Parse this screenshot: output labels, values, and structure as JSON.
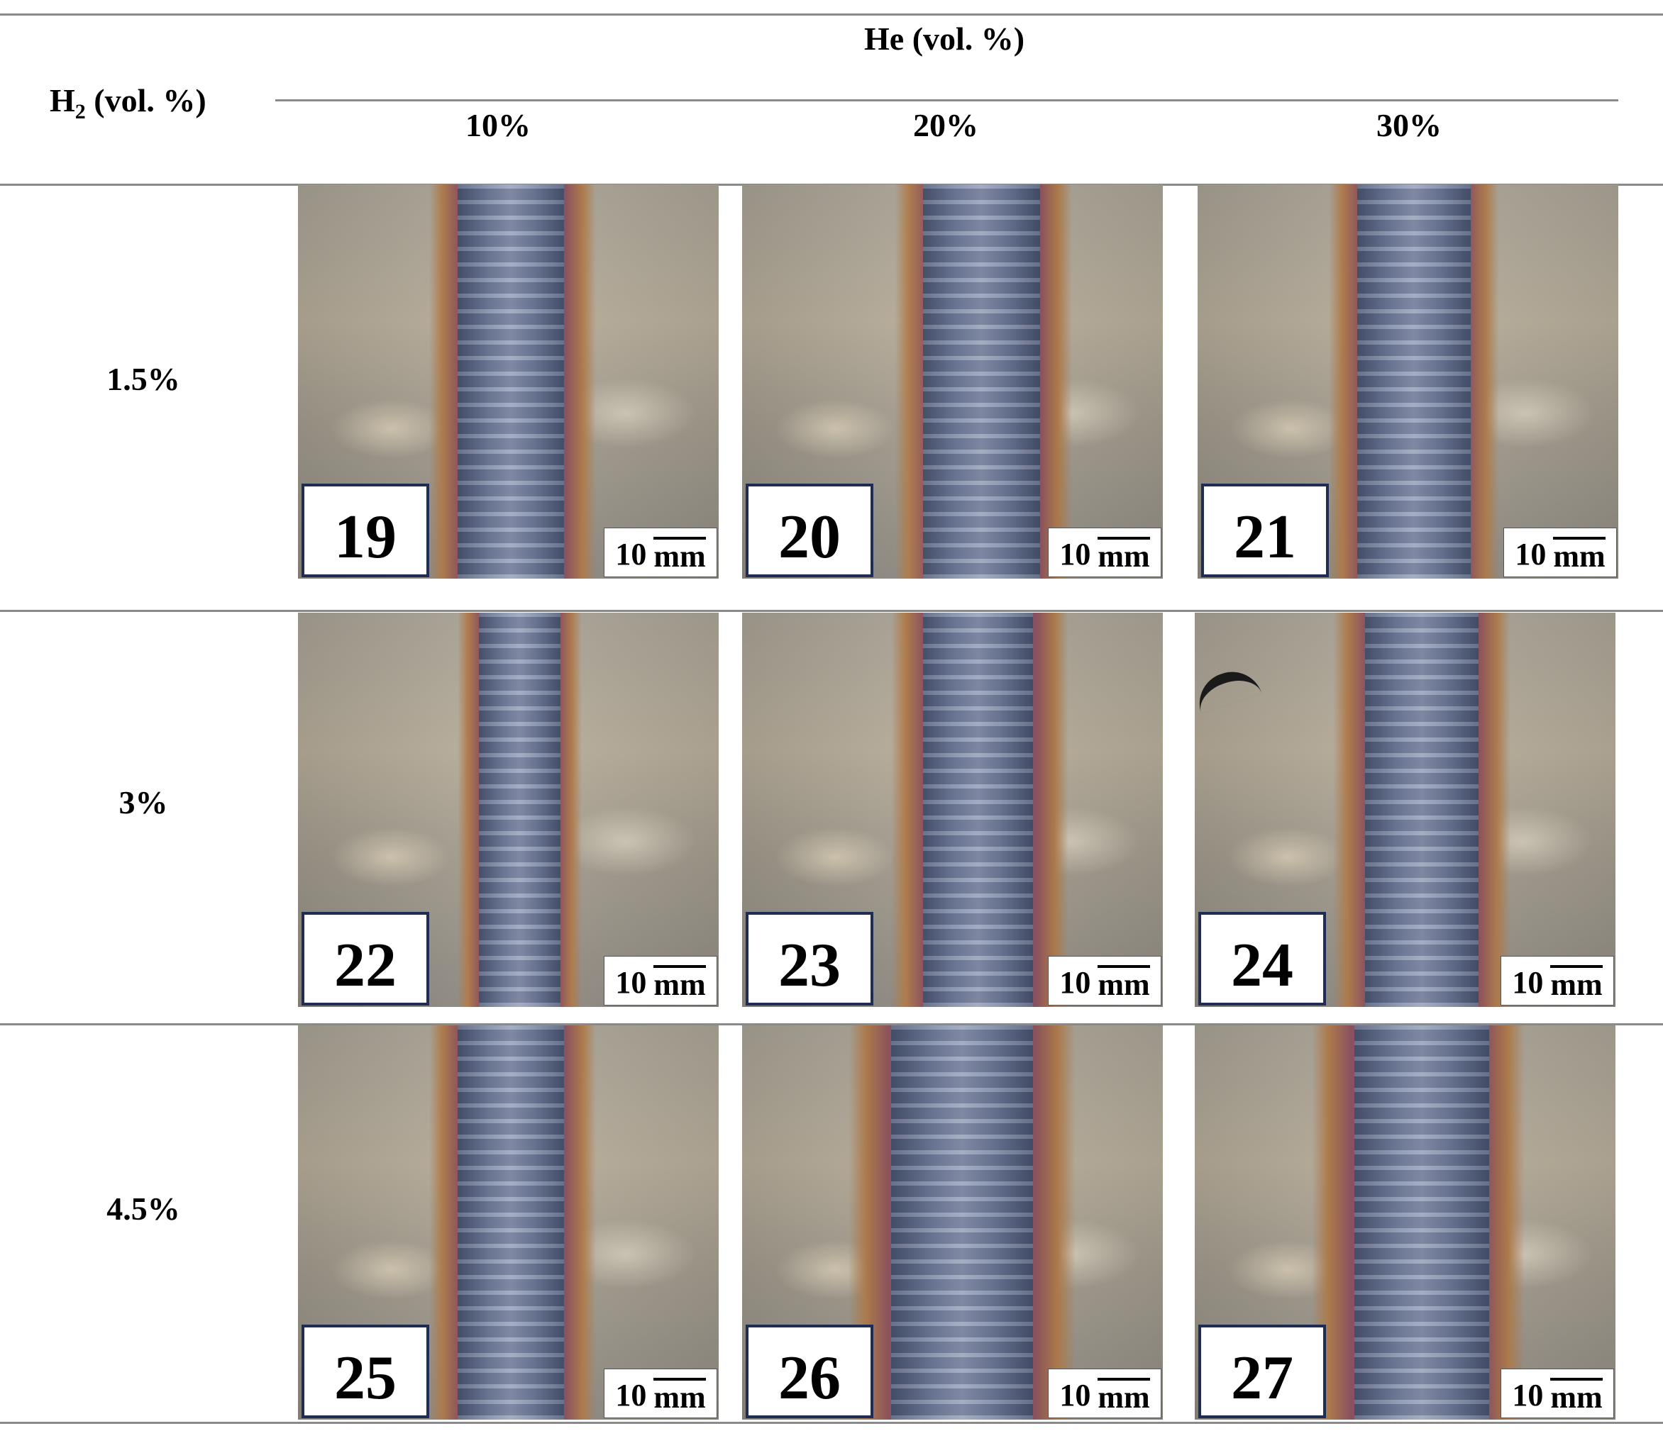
{
  "header": {
    "row_axis_label": "H",
    "row_axis_sub": "2",
    "row_axis_suffix": " (vol. %)",
    "col_axis_label": "He (vol. %)"
  },
  "columns": [
    "10%",
    "20%",
    "30%"
  ],
  "rows": [
    "1.5%",
    "3%",
    "4.5%"
  ],
  "samples": [
    [
      "19",
      "20",
      "21"
    ],
    [
      "22",
      "23",
      "24"
    ],
    [
      "25",
      "26",
      "27"
    ]
  ],
  "scale_bar": {
    "value": "10",
    "unit": "mm"
  }
}
